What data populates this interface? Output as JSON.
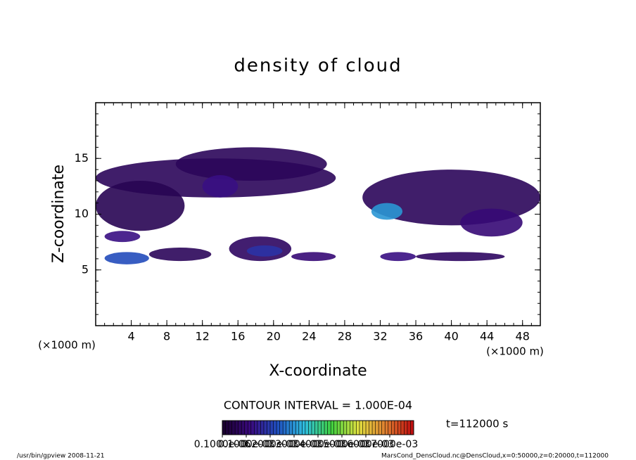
{
  "chart_data": {
    "type": "contour",
    "title": "density of cloud",
    "xlabel": "X-coordinate",
    "ylabel": "Z-coordinate",
    "xunit": "(×1000 m)",
    "yunit": "(×1000 m)",
    "xlim": [
      0,
      50
    ],
    "ylim": [
      0,
      20
    ],
    "xticks": [
      4,
      8,
      12,
      16,
      20,
      24,
      28,
      32,
      36,
      40,
      44,
      48
    ],
    "yticks": [
      5,
      10,
      15
    ],
    "minor_tick_step": 1,
    "contour_interval": "CONTOUR INTERVAL = 1.000E-04",
    "time": "t=112000 s",
    "colormap": [
      "#1a0030",
      "#3a0a80",
      "#2050c0",
      "#30c0e0",
      "#40d040",
      "#e0e040",
      "#e08030",
      "#c01010"
    ],
    "colorbar": {
      "lim": [
        0,
        0.0008
      ],
      "ticks": [
        {
          "value": 1e-07,
          "label": "0.1000e-06"
        },
        {
          "value": 0.0001,
          "label": "0.1000e-03"
        },
        {
          "value": 0.0002,
          "label": "0.2000e-03"
        },
        {
          "value": 0.0003,
          "label": "0.3000e-03"
        },
        {
          "value": 0.0004,
          "label": "0.4000e-03"
        },
        {
          "value": 0.0005,
          "label": "0.5000e-03"
        },
        {
          "value": 0.0006,
          "label": "0.6000e-03"
        },
        {
          "value": 0.0007,
          "label": "0.7000e-03"
        }
      ]
    },
    "regions": [
      {
        "x": [
          0,
          27
        ],
        "z": [
          11.5,
          15
        ],
        "value": 6e-05
      },
      {
        "x": [
          9,
          26
        ],
        "z": [
          13,
          16
        ],
        "value": 6e-05
      },
      {
        "x": [
          0,
          10
        ],
        "z": [
          8.5,
          13
        ],
        "value": 5e-05
      },
      {
        "x": [
          30,
          50
        ],
        "z": [
          9,
          14
        ],
        "value": 6e-05
      },
      {
        "x": [
          12,
          16
        ],
        "z": [
          11.5,
          13.5
        ],
        "value": 0.00012
      },
      {
        "x": [
          41,
          48
        ],
        "z": [
          8,
          10.5
        ],
        "value": 0.0001
      },
      {
        "x": [
          31,
          34.5
        ],
        "z": [
          9.5,
          11
        ],
        "value": 0.0003
      },
      {
        "x": [
          1,
          5
        ],
        "z": [
          7.5,
          8.5
        ],
        "value": 0.00012
      },
      {
        "x": [
          1,
          6
        ],
        "z": [
          5.5,
          6.6
        ],
        "value": 0.00022
      },
      {
        "x": [
          6,
          13
        ],
        "z": [
          5.8,
          7
        ],
        "value": 6e-05
      },
      {
        "x": [
          15,
          22
        ],
        "z": [
          5.8,
          8
        ],
        "value": 7e-05
      },
      {
        "x": [
          17,
          21
        ],
        "z": [
          6.2,
          7.2
        ],
        "value": 0.00018
      },
      {
        "x": [
          22,
          27
        ],
        "z": [
          5.8,
          6.6
        ],
        "value": 0.0001
      },
      {
        "x": [
          32,
          36
        ],
        "z": [
          5.8,
          6.6
        ],
        "value": 0.00012
      },
      {
        "x": [
          36,
          46
        ],
        "z": [
          5.8,
          6.6
        ],
        "value": 7e-05
      }
    ],
    "footer_left": "/usr/bin/gpview  2008-11-21",
    "footer_right": "MarsCond_DensCloud.nc@DensCloud,x=0:50000,z=0:20000,t=112000"
  }
}
